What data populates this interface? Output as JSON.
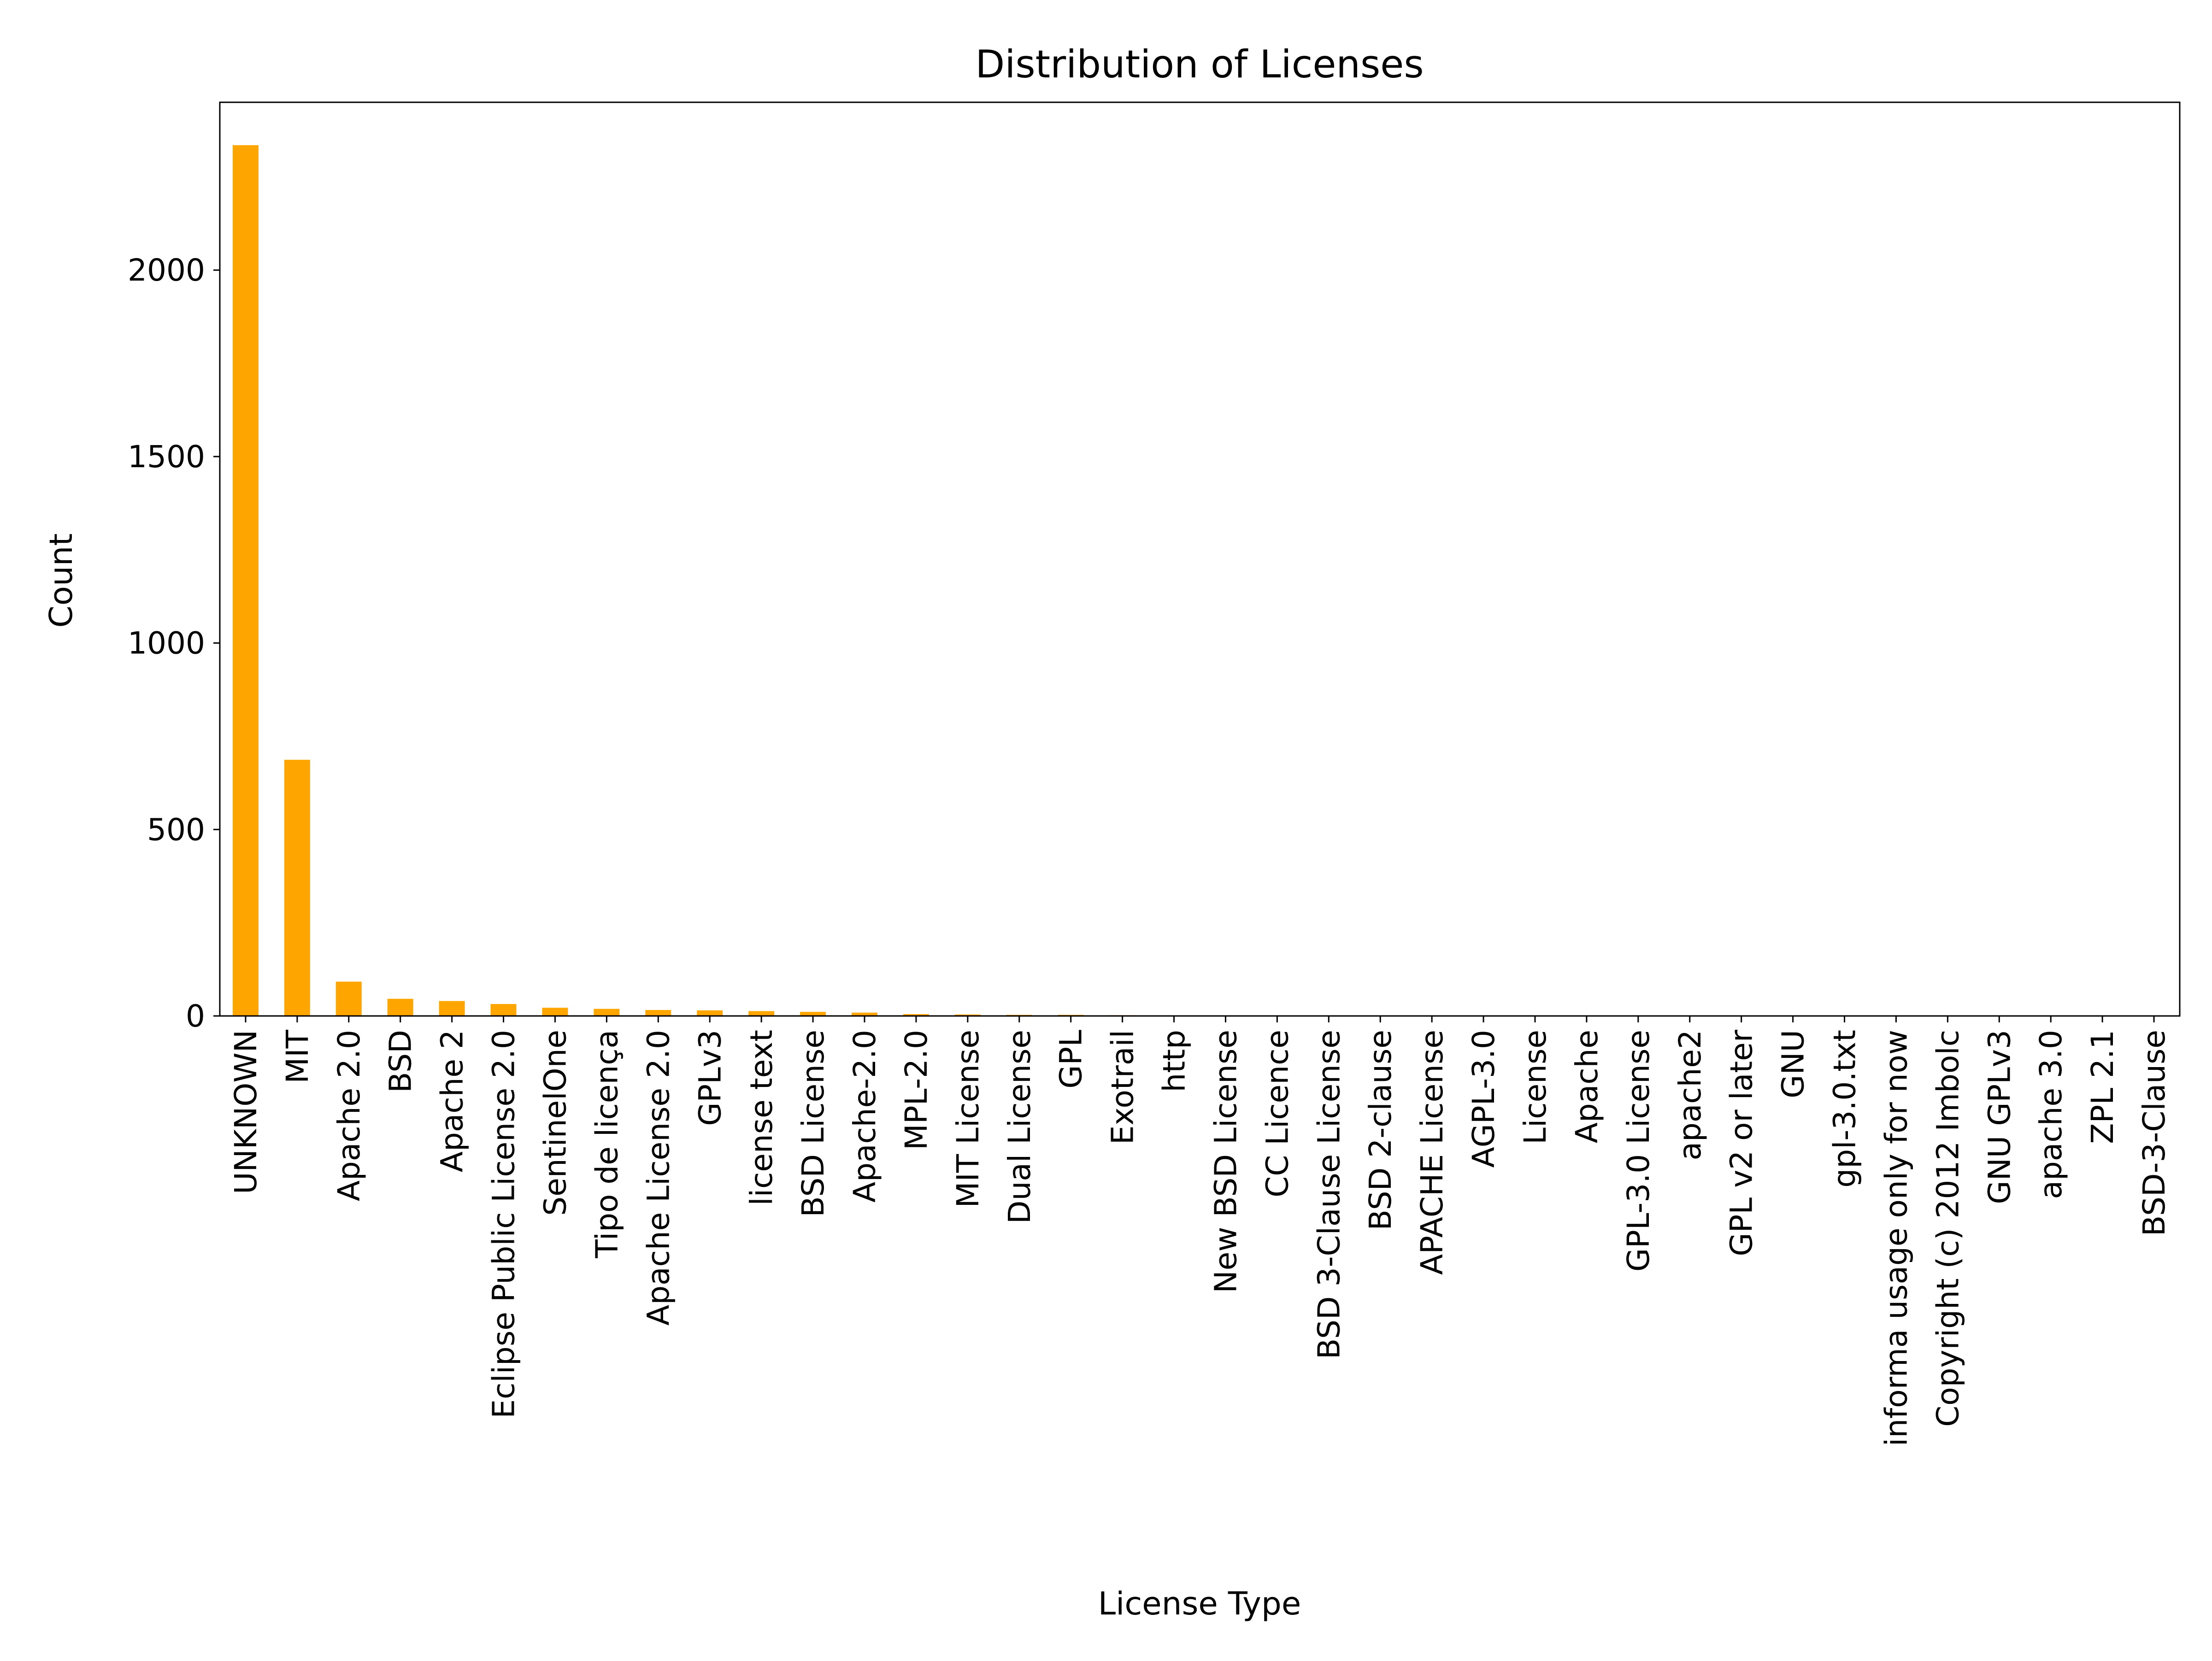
{
  "chart_data": {
    "type": "bar",
    "title": "Distribution of Licenses",
    "xlabel": "License Type",
    "ylabel": "Count",
    "ylim": [
      0,
      2450
    ],
    "yticks": [
      0,
      500,
      1000,
      1500,
      2000
    ],
    "grid": false,
    "bar_color": "#ffa500",
    "categories": [
      "UNKNOWN",
      "MIT",
      "Apache 2.0",
      "BSD",
      "Apache 2",
      "Eclipse Public License 2.0",
      "SentinelOne",
      "Tipo de licença",
      "Apache License 2.0",
      "GPLv3",
      "license text",
      "BSD License",
      "Apache-2.0",
      "MPL-2.0",
      "MIT License",
      "Dual License",
      "GPL",
      "Exotrail",
      "http",
      "New BSD License",
      "CC Licence",
      "BSD 3-Clause License",
      "BSD 2-clause",
      "APACHE License",
      "AGPL-3.0",
      "License",
      "Apache",
      "GPL-3.0 License",
      "apache2",
      "GPL v2 or later",
      "GNU",
      "gpl-3.0.txt",
      "informa usage only for now",
      "Copyright (c) 2012 Imbolc",
      "GNU GPLv3",
      "apache 3.0",
      "ZPL 2.1",
      "BSD-3-Clause"
    ],
    "values": [
      2335,
      687,
      92,
      46,
      40,
      32,
      22,
      19,
      16,
      15,
      13,
      11,
      9,
      5,
      4,
      3,
      3,
      2,
      1,
      1,
      1,
      1,
      1,
      1,
      1,
      1,
      1,
      1,
      1,
      1,
      1,
      1,
      1,
      1,
      1,
      1,
      1,
      1
    ]
  }
}
